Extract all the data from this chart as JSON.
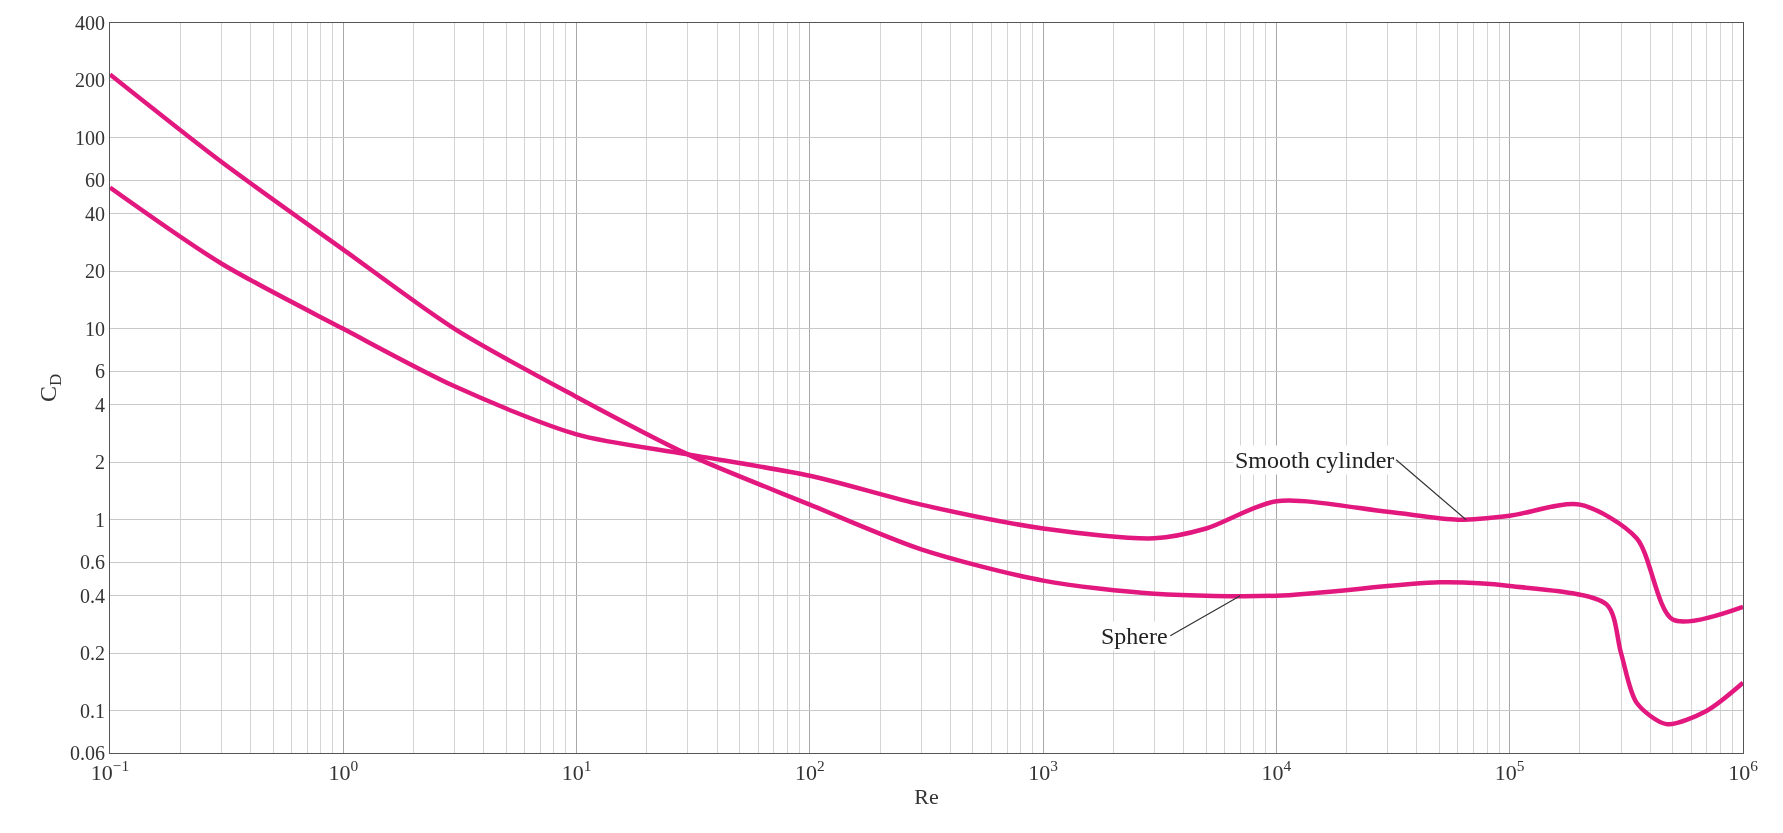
{
  "chart_data": {
    "type": "line",
    "xlabel": "Re",
    "ylabel": "C$_{D}$",
    "log": "xy",
    "grid": true,
    "line_style": "solid",
    "marker": "none",
    "xlim": [
      0.1,
      1000000
    ],
    "ylim": [
      0.06,
      400
    ],
    "xticks": [
      {
        "value": 0.1,
        "label": "10$^{−1}$"
      },
      {
        "value": 1,
        "label": "10$^{0}$"
      },
      {
        "value": 10,
        "label": "10$^{1}$"
      },
      {
        "value": 100,
        "label": "10$^{2}$"
      },
      {
        "value": 1000,
        "label": "10$^{3}$"
      },
      {
        "value": 10000,
        "label": "10$^{4}$"
      },
      {
        "value": 100000,
        "label": "10$^{5}$"
      },
      {
        "value": 1000000,
        "label": "10$^{6}$"
      }
    ],
    "yticks": [
      0.06,
      0.1,
      0.2,
      0.4,
      0.6,
      1,
      2,
      4,
      6,
      10,
      20,
      40,
      60,
      100,
      200,
      400
    ],
    "series": [
      {
        "color": "#e2187f",
        "x": [
          0.1,
          0.3,
          1,
          3,
          10,
          30,
          100,
          300,
          1000,
          3000,
          10000,
          50000,
          100000,
          260000,
          300000,
          350000,
          470000,
          700000,
          1000000
        ],
        "values": [
          215,
          75,
          26,
          10,
          4.4,
          2.2,
          1.2,
          0.7,
          0.48,
          0.41,
          0.4,
          0.47,
          0.45,
          0.36,
          0.2,
          0.11,
          0.085,
          0.1,
          0.14
        ]
      },
      {
        "color": "#e2187f",
        "x": [
          0.1,
          0.3,
          1,
          3,
          10,
          30,
          100,
          300,
          1000,
          3000,
          5000,
          10000,
          30000,
          60000,
          100000,
          200000,
          350000,
          500000,
          1000000
        ],
        "values": [
          55,
          22,
          10,
          5,
          2.8,
          2.2,
          1.7,
          1.2,
          0.9,
          0.8,
          0.9,
          1.25,
          1.1,
          1.0,
          1.05,
          1.2,
          0.8,
          0.3,
          0.35
        ]
      }
    ],
    "annotations": [
      {
        "text": "Smooth cylinder",
        "x": 65000,
        "y": 1.0
      },
      {
        "text": "Sphere",
        "x": 7000,
        "y": 0.4
      }
    ]
  }
}
